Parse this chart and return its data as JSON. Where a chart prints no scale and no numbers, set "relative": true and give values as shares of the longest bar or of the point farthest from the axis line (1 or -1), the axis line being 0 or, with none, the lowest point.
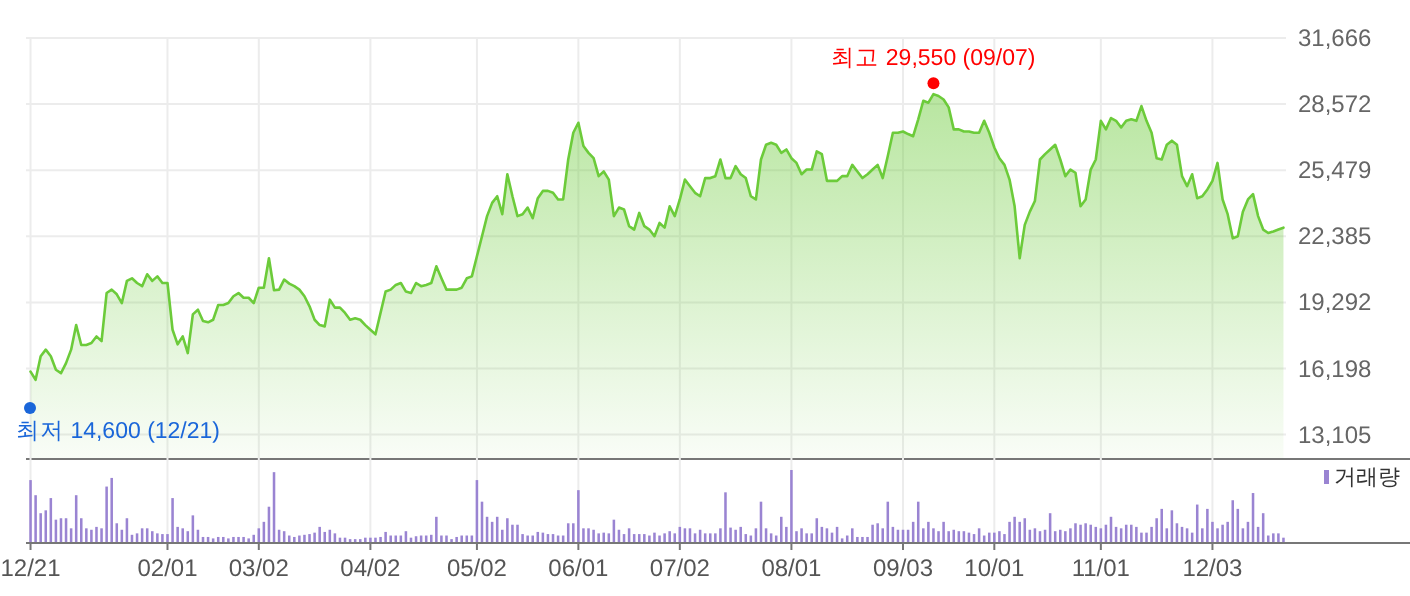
{
  "chart_data": [
    {
      "type": "area",
      "series": [
        {
          "color": "#6ccb3a",
          "values": [
            16050,
            15670,
            16770,
            17080,
            16770,
            16140,
            15980,
            16450,
            17080,
            18230,
            17300,
            17300,
            17390,
            17700,
            17480,
            19730,
            19890,
            19670,
            19260,
            20300,
            20420,
            20200,
            20050,
            20610,
            20300,
            20510,
            20200,
            20200,
            18010,
            17330,
            17700,
            16920,
            18730,
            18950,
            18420,
            18360,
            18480,
            19170,
            19170,
            19260,
            19580,
            19730,
            19510,
            19510,
            19260,
            19980,
            19980,
            21360,
            19860,
            19890,
            20360,
            20170,
            20050,
            19890,
            19580,
            19110,
            18480,
            18230,
            18170,
            19420,
            19050,
            19050,
            18800,
            18480,
            18550,
            18480,
            18230,
            18010,
            17800,
            18800,
            19800,
            19890,
            20110,
            20200,
            19800,
            19730,
            20200,
            20050,
            20110,
            20200,
            20980,
            20420,
            19890,
            19890,
            19890,
            19980,
            20420,
            20510,
            21450,
            22390,
            23330,
            23950,
            24260,
            23420,
            25290,
            24260,
            23330,
            23420,
            23730,
            23230,
            24170,
            24510,
            24510,
            24420,
            24110,
            24110,
            25980,
            27230,
            27700,
            26610,
            26290,
            26040,
            25200,
            25420,
            25040,
            23330,
            23730,
            23640,
            22860,
            22700,
            23480,
            22860,
            22700,
            22390,
            23010,
            22790,
            23790,
            23330,
            24110,
            25040,
            24730,
            24420,
            24260,
            25110,
            25110,
            25200,
            25980,
            25110,
            25110,
            25670,
            25290,
            25110,
            24260,
            24110,
            25980,
            26670,
            26760,
            26670,
            26290,
            26450,
            26040,
            25820,
            25290,
            25510,
            25510,
            26360,
            26230,
            24980,
            24980,
            24980,
            25200,
            25200,
            25730,
            25420,
            25110,
            25290,
            25510,
            25730,
            25110,
            26140,
            27230,
            27230,
            27290,
            27170,
            27070,
            27860,
            28730,
            28640,
            29040,
            28950,
            28790,
            28420,
            27390,
            27390,
            27290,
            27290,
            27230,
            27230,
            27790,
            27230,
            26540,
            26040,
            25730,
            25040,
            23790,
            21360,
            22920,
            23540,
            24040,
            25980,
            26230,
            26450,
            26670,
            25980,
            25200,
            25510,
            25360,
            23790,
            24110,
            25510,
            25980,
            27790,
            27390,
            27920,
            27790,
            27480,
            27790,
            27860,
            27790,
            28480,
            27790,
            27230,
            26040,
            25980,
            26670,
            26860,
            26670,
            25200,
            24730,
            25290,
            24170,
            24260,
            24580,
            24980,
            25820,
            24110,
            23420,
            22290,
            22390,
            23540,
            24110,
            24360,
            23330,
            22700,
            22540,
            22610,
            22700,
            22790
          ]
        }
      ],
      "ylim": [
        12010,
        31666
      ],
      "yticks": [
        {
          "value": 13105,
          "label": "13,105"
        },
        {
          "value": 16198,
          "label": "16,198"
        },
        {
          "value": 19292,
          "label": "19,292"
        },
        {
          "value": 22385,
          "label": "22,385"
        },
        {
          "value": 25479,
          "label": "25,479"
        },
        {
          "value": 28572,
          "label": "28,572"
        },
        {
          "value": 31666,
          "label": "31,666"
        }
      ],
      "grid": true,
      "tick_labels": "y",
      "annotations": [
        {
          "text": "최고 29,550 (09/07)",
          "y": 29550
        },
        "최저 14,600 (12/21)"
      ]
    },
    {
      "type": "bar",
      "relative": true,
      "grid": "x",
      "legend": "top right",
      "categories": [
        "12/21",
        null,
        null,
        null,
        null,
        null,
        null,
        null,
        null,
        null,
        null,
        null,
        null,
        null,
        null,
        null,
        null,
        null,
        null,
        null,
        null,
        null,
        null,
        null,
        null,
        null,
        null,
        "02/01",
        null,
        null,
        null,
        null,
        null,
        null,
        null,
        null,
        null,
        null,
        null,
        null,
        null,
        null,
        null,
        null,
        null,
        "03/02",
        null,
        null,
        null,
        null,
        null,
        null,
        null,
        null,
        null,
        null,
        null,
        null,
        null,
        null,
        null,
        null,
        null,
        null,
        null,
        null,
        null,
        "04/02",
        null,
        null,
        null,
        null,
        null,
        null,
        null,
        null,
        null,
        null,
        null,
        null,
        null,
        null,
        null,
        null,
        null,
        null,
        null,
        null,
        "05/02",
        null,
        null,
        null,
        null,
        null,
        null,
        null,
        null,
        null,
        null,
        null,
        null,
        null,
        null,
        null,
        null,
        null,
        null,
        null,
        "06/01",
        null,
        null,
        null,
        null,
        null,
        null,
        null,
        null,
        null,
        null,
        null,
        null,
        null,
        null,
        null,
        null,
        null,
        null,
        null,
        "07/02",
        null,
        null,
        null,
        null,
        null,
        null,
        null,
        null,
        null,
        null,
        null,
        null,
        null,
        null,
        null,
        null,
        null,
        null,
        null,
        null,
        null,
        "08/01",
        null,
        null,
        null,
        null,
        null,
        null,
        null,
        null,
        null,
        null,
        null,
        null,
        null,
        null,
        null,
        null,
        null,
        null,
        null,
        null,
        null,
        "09/03",
        null,
        null,
        null,
        null,
        null,
        null,
        null,
        null,
        null,
        null,
        null,
        null,
        null,
        null,
        null,
        null,
        null,
        "10/01",
        null,
        null,
        null,
        null,
        null,
        null,
        null,
        null,
        null,
        null,
        null,
        null,
        null,
        null,
        null,
        null,
        null,
        null,
        null,
        null,
        "11/01",
        null,
        null,
        null,
        null,
        null,
        null,
        null,
        null,
        null,
        null,
        null,
        null,
        null,
        null,
        null,
        null,
        null,
        null,
        null,
        null,
        null,
        "12/03",
        null,
        null,
        null,
        null,
        null,
        null,
        null,
        null,
        null,
        null,
        null,
        null,
        null,
        null
      ],
      "series": [
        {
          "name": "거래량",
          "color": "#9a84d2",
          "values": [
            0.86,
            0.65,
            0.4,
            0.44,
            0.61,
            0.31,
            0.33,
            0.33,
            0.19,
            0.65,
            0.33,
            0.19,
            0.17,
            0.21,
            0.19,
            0.77,
            0.89,
            0.26,
            0.17,
            0.33,
            0.1,
            0.12,
            0.19,
            0.19,
            0.15,
            0.12,
            0.11,
            0.11,
            0.61,
            0.21,
            0.19,
            0.15,
            0.37,
            0.17,
            0.07,
            0.07,
            0.05,
            0.07,
            0.07,
            0.05,
            0.07,
            0.07,
            0.07,
            0.05,
            0.1,
            0.19,
            0.28,
            0.49,
            0.97,
            0.17,
            0.15,
            0.09,
            0.07,
            0.09,
            0.1,
            0.11,
            0.13,
            0.21,
            0.14,
            0.17,
            0.12,
            0.06,
            0.06,
            0.04,
            0.04,
            0.04,
            0.06,
            0.06,
            0.06,
            0.07,
            0.14,
            0.09,
            0.09,
            0.09,
            0.15,
            0.06,
            0.08,
            0.09,
            0.09,
            0.1,
            0.35,
            0.09,
            0.09,
            0.04,
            0.07,
            0.09,
            0.09,
            0.09,
            0.86,
            0.56,
            0.35,
            0.28,
            0.35,
            0.17,
            0.33,
            0.24,
            0.24,
            0.11,
            0.09,
            0.09,
            0.14,
            0.13,
            0.11,
            0.11,
            0.09,
            0.09,
            0.26,
            0.26,
            0.72,
            0.19,
            0.19,
            0.17,
            0.12,
            0.13,
            0.12,
            0.31,
            0.17,
            0.11,
            0.19,
            0.11,
            0.11,
            0.11,
            0.09,
            0.13,
            0.09,
            0.12,
            0.15,
            0.12,
            0.21,
            0.19,
            0.19,
            0.12,
            0.17,
            0.12,
            0.12,
            0.12,
            0.19,
            0.69,
            0.2,
            0.17,
            0.21,
            0.11,
            0.09,
            0.19,
            0.56,
            0.19,
            0.12,
            0.09,
            0.35,
            0.21,
            1,
            0.15,
            0.19,
            0.12,
            0.12,
            0.33,
            0.21,
            0.19,
            0.13,
            0.21,
            0.05,
            0.09,
            0.19,
            0.07,
            0.07,
            0.07,
            0.24,
            0.26,
            0.19,
            0.56,
            0.21,
            0.17,
            0.17,
            0.17,
            0.28,
            0.56,
            0.19,
            0.28,
            0.19,
            0.15,
            0.28,
            0.15,
            0.17,
            0.15,
            0.15,
            0.13,
            0.11,
            0.19,
            0.09,
            0.13,
            0.13,
            0.15,
            0.11,
            0.28,
            0.35,
            0.28,
            0.33,
            0.17,
            0.19,
            0.15,
            0.17,
            0.4,
            0.15,
            0.17,
            0.15,
            0.19,
            0.26,
            0.24,
            0.26,
            0.24,
            0.21,
            0.19,
            0.24,
            0.35,
            0.21,
            0.19,
            0.24,
            0.24,
            0.21,
            0.13,
            0.13,
            0.21,
            0.33,
            0.46,
            0.19,
            0.44,
            0.26,
            0.21,
            0.19,
            0.13,
            0.52,
            0.19,
            0.46,
            0.28,
            0.19,
            0.24,
            0.28,
            0.58,
            0.46,
            0.19,
            0.28,
            0.68,
            0.21,
            0.4,
            0.09,
            0.12,
            0.12,
            0.06
          ]
        }
      ]
    }
  ]
}
